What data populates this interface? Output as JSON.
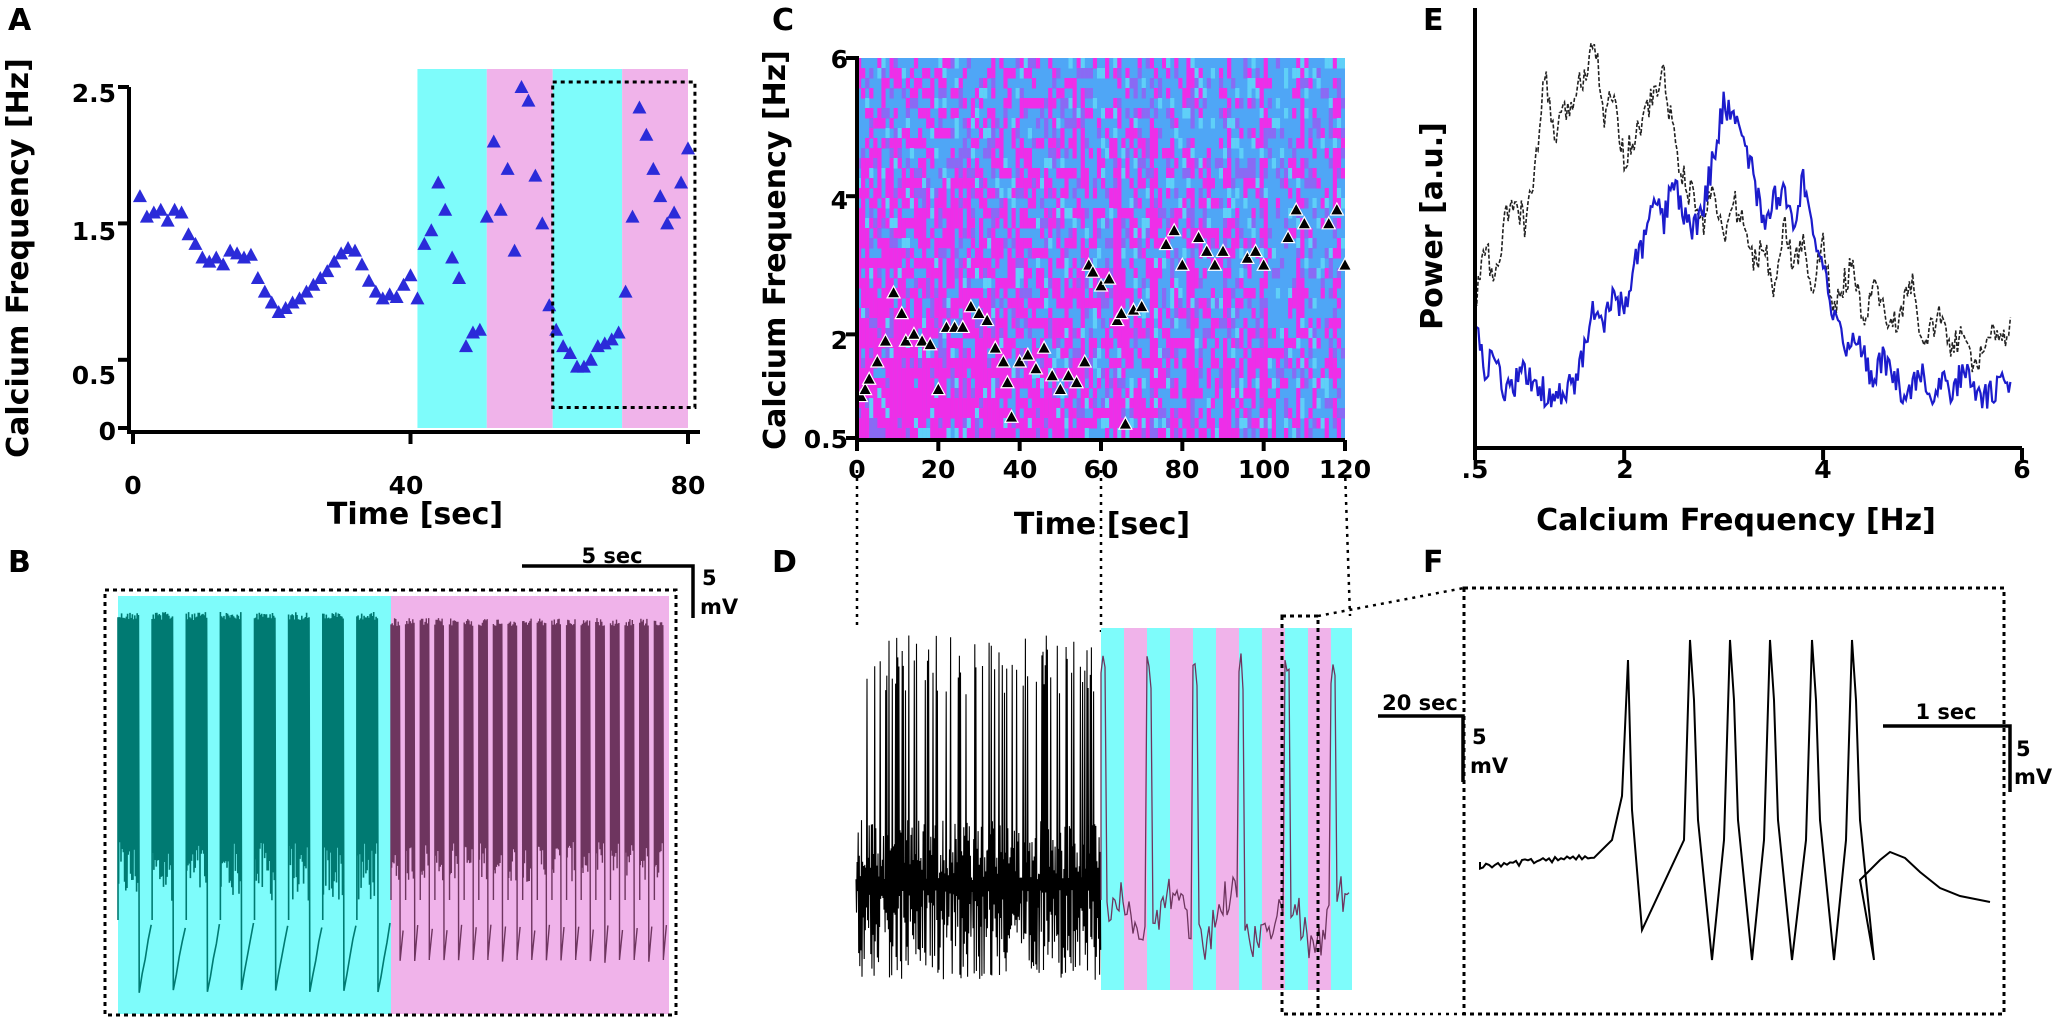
{
  "figure": {
    "panel_labels": [
      "A",
      "B",
      "C",
      "D",
      "E",
      "F"
    ],
    "colors": {
      "cyan": "#7efcfb",
      "pink": "#f0b3ea",
      "teal_trace": "#007a72",
      "purple_trace": "#6e355f",
      "marker_blue": "#2b2bd9",
      "magenta": "#ee2ee8",
      "sky": "#4fa6f6",
      "blue_line": "#1c1ccc",
      "black": "#000000"
    }
  },
  "chart_data": [
    {
      "id": "A",
      "type": "scatter",
      "xlabel": "Time [sec]",
      "ylabel": "Calcium Frequency [Hz]",
      "xlim": [
        0,
        80
      ],
      "ylim": [
        0,
        2.5
      ],
      "xticks": [
        0,
        40,
        80
      ],
      "yticks": [
        0,
        0.5,
        1.5,
        2.5
      ],
      "xtick_labels": [
        "0",
        "40",
        "80"
      ],
      "ytick_labels": [
        "0",
        "0.5",
        "1.5",
        "2.5"
      ],
      "shaded_regions": [
        {
          "x0": 41,
          "x1": 51,
          "color": "cyan"
        },
        {
          "x0": 51,
          "x1": 60.5,
          "color": "pink"
        },
        {
          "x0": 60.5,
          "x1": 70.5,
          "color": "cyan"
        },
        {
          "x0": 70.5,
          "x1": 80,
          "color": "pink"
        }
      ],
      "highlight_box": {
        "x0": 60.5,
        "x1": 81,
        "y0": 0.15,
        "y1": 2.5
      },
      "x": [
        1,
        2,
        3,
        4,
        5,
        6,
        7,
        8,
        9,
        10,
        11,
        12,
        13,
        14,
        15,
        16,
        17,
        18,
        19,
        20,
        21,
        22,
        23,
        24,
        25,
        26,
        27,
        28,
        29,
        30,
        31,
        32,
        33,
        34,
        35,
        36,
        37,
        38,
        39,
        40,
        41,
        42,
        43,
        44,
        45,
        46,
        47,
        48,
        49,
        50,
        51,
        52,
        53,
        54,
        55,
        56,
        57,
        58,
        59,
        60,
        61,
        62,
        63,
        64,
        65,
        66,
        67,
        68,
        69,
        70,
        71,
        72,
        73,
        74,
        75,
        76,
        77,
        78,
        79,
        80
      ],
      "values": [
        1.7,
        1.55,
        1.58,
        1.6,
        1.52,
        1.6,
        1.58,
        1.42,
        1.35,
        1.25,
        1.22,
        1.25,
        1.2,
        1.3,
        1.28,
        1.25,
        1.27,
        1.1,
        1.0,
        0.92,
        0.85,
        0.88,
        0.92,
        0.95,
        1.0,
        1.05,
        1.1,
        1.15,
        1.22,
        1.28,
        1.32,
        1.3,
        1.2,
        1.08,
        1.0,
        0.95,
        0.98,
        0.96,
        1.05,
        1.12,
        0.95,
        1.35,
        1.45,
        1.8,
        1.6,
        1.25,
        1.1,
        0.6,
        0.7,
        0.72,
        1.55,
        2.1,
        1.6,
        1.9,
        1.3,
        2.5,
        2.4,
        1.85,
        1.5,
        0.9,
        0.72,
        0.6,
        0.55,
        0.45,
        0.45,
        0.5,
        0.6,
        0.62,
        0.65,
        0.7,
        1.0,
        1.55,
        2.35,
        2.15,
        1.9,
        1.7,
        1.5,
        1.58,
        1.8,
        2.05
      ]
    },
    {
      "id": "C",
      "type": "heatmap",
      "xlabel": "Time [sec]",
      "ylabel": "Calcium Frequency [Hz]",
      "xlim": [
        0,
        120
      ],
      "ylim": [
        0.5,
        6
      ],
      "xticks": [
        0,
        20,
        40,
        60,
        80,
        100,
        120
      ],
      "yticks": [
        0.5,
        2,
        4,
        6
      ],
      "xtick_labels": [
        "0",
        "20",
        "40",
        "60",
        "80",
        "100",
        "120"
      ],
      "ytick_labels": [
        "0.5",
        "2",
        "4",
        "6"
      ],
      "peak_x": [
        1,
        2,
        3,
        5,
        7,
        9,
        11,
        12,
        14,
        16,
        18,
        20,
        22,
        24,
        26,
        28,
        30,
        32,
        34,
        36,
        37,
        38,
        40,
        42,
        44,
        46,
        48,
        50,
        52,
        54,
        56,
        57,
        58,
        60,
        62,
        64,
        65,
        66,
        68,
        70,
        76,
        78,
        80,
        84,
        86,
        88,
        90,
        96,
        98,
        100,
        106,
        108,
        110,
        116,
        118,
        120
      ],
      "peak_y": [
        1.1,
        1.2,
        1.35,
        1.6,
        1.9,
        2.6,
        2.3,
        1.9,
        2.0,
        1.9,
        1.85,
        1.2,
        2.1,
        2.1,
        2.1,
        2.4,
        2.3,
        2.2,
        1.8,
        1.6,
        1.3,
        0.8,
        1.6,
        1.7,
        1.5,
        1.8,
        1.4,
        1.2,
        1.4,
        1.3,
        1.6,
        3.0,
        2.9,
        2.7,
        2.8,
        2.2,
        2.3,
        0.7,
        2.35,
        2.4,
        3.3,
        3.5,
        3.0,
        3.4,
        3.2,
        3.0,
        3.2,
        3.1,
        3.2,
        3.0,
        3.4,
        3.8,
        3.6,
        3.6,
        3.8,
        3.0
      ]
    },
    {
      "id": "E",
      "type": "line",
      "xlabel": "Calcium Frequency [Hz]",
      "ylabel": "Power [a.u.]",
      "xlim": [
        0.5,
        6
      ],
      "xticks": [
        0.5,
        2,
        4,
        6
      ],
      "xtick_labels": [
        ".5",
        "2",
        "4",
        "6"
      ],
      "series": [
        {
          "name": "dashed-black",
          "x": [
            0.5,
            0.6,
            0.7,
            0.8,
            0.9,
            1.0,
            1.1,
            1.2,
            1.3,
            1.4,
            1.5,
            1.6,
            1.7,
            1.8,
            1.9,
            2.0,
            2.1,
            2.2,
            2.3,
            2.4,
            2.5,
            2.6,
            2.7,
            2.8,
            2.9,
            3.0,
            3.1,
            3.2,
            3.3,
            3.4,
            3.5,
            3.6,
            3.7,
            3.8,
            3.9,
            4.0,
            4.1,
            4.2,
            4.3,
            4.4,
            4.5,
            4.6,
            4.7,
            4.8,
            4.9,
            5.0,
            5.1,
            5.2,
            5.3,
            5.4,
            5.5,
            5.6,
            5.7,
            5.8,
            5.9
          ],
          "values": [
            0.3,
            0.45,
            0.35,
            0.5,
            0.55,
            0.5,
            0.6,
            0.85,
            0.7,
            0.75,
            0.8,
            0.85,
            0.95,
            0.75,
            0.8,
            0.65,
            0.7,
            0.75,
            0.8,
            0.85,
            0.7,
            0.6,
            0.55,
            0.5,
            0.6,
            0.45,
            0.55,
            0.5,
            0.4,
            0.45,
            0.35,
            0.5,
            0.4,
            0.45,
            0.35,
            0.45,
            0.3,
            0.35,
            0.4,
            0.25,
            0.35,
            0.3,
            0.25,
            0.3,
            0.35,
            0.2,
            0.25,
            0.3,
            0.2,
            0.25,
            0.15,
            0.2,
            0.25,
            0.2,
            0.3
          ]
        },
        {
          "name": "blue",
          "x": [
            0.5,
            0.6,
            0.7,
            0.8,
            0.9,
            1.0,
            1.1,
            1.2,
            1.3,
            1.4,
            1.5,
            1.6,
            1.7,
            1.8,
            1.9,
            2.0,
            2.1,
            2.2,
            2.3,
            2.4,
            2.5,
            2.6,
            2.7,
            2.8,
            2.9,
            3.0,
            3.1,
            3.2,
            3.3,
            3.4,
            3.5,
            3.6,
            3.7,
            3.8,
            3.9,
            4.0,
            4.1,
            4.2,
            4.3,
            4.4,
            4.5,
            4.6,
            4.7,
            4.8,
            4.9,
            5.0,
            5.1,
            5.2,
            5.3,
            5.4,
            5.5,
            5.6,
            5.7,
            5.8,
            5.9
          ],
          "values": [
            0.25,
            0.15,
            0.18,
            0.1,
            0.12,
            0.15,
            0.12,
            0.1,
            0.08,
            0.1,
            0.12,
            0.2,
            0.3,
            0.25,
            0.35,
            0.28,
            0.4,
            0.45,
            0.55,
            0.5,
            0.6,
            0.52,
            0.48,
            0.55,
            0.65,
            0.78,
            0.75,
            0.72,
            0.6,
            0.5,
            0.55,
            0.58,
            0.5,
            0.6,
            0.45,
            0.38,
            0.3,
            0.2,
            0.25,
            0.2,
            0.12,
            0.18,
            0.15,
            0.1,
            0.12,
            0.15,
            0.08,
            0.12,
            0.1,
            0.15,
            0.12,
            0.08,
            0.1,
            0.12,
            0.1
          ]
        }
      ]
    }
  ],
  "scale_bars": {
    "B": {
      "time": "5 sec",
      "voltage_a": "5",
      "voltage_b": "mV"
    },
    "D": {
      "time": "20 sec",
      "voltage_a": "5",
      "voltage_b": "mV"
    },
    "F": {
      "time": "1 sec",
      "voltage_a": "5",
      "voltage_b": "mV"
    }
  }
}
